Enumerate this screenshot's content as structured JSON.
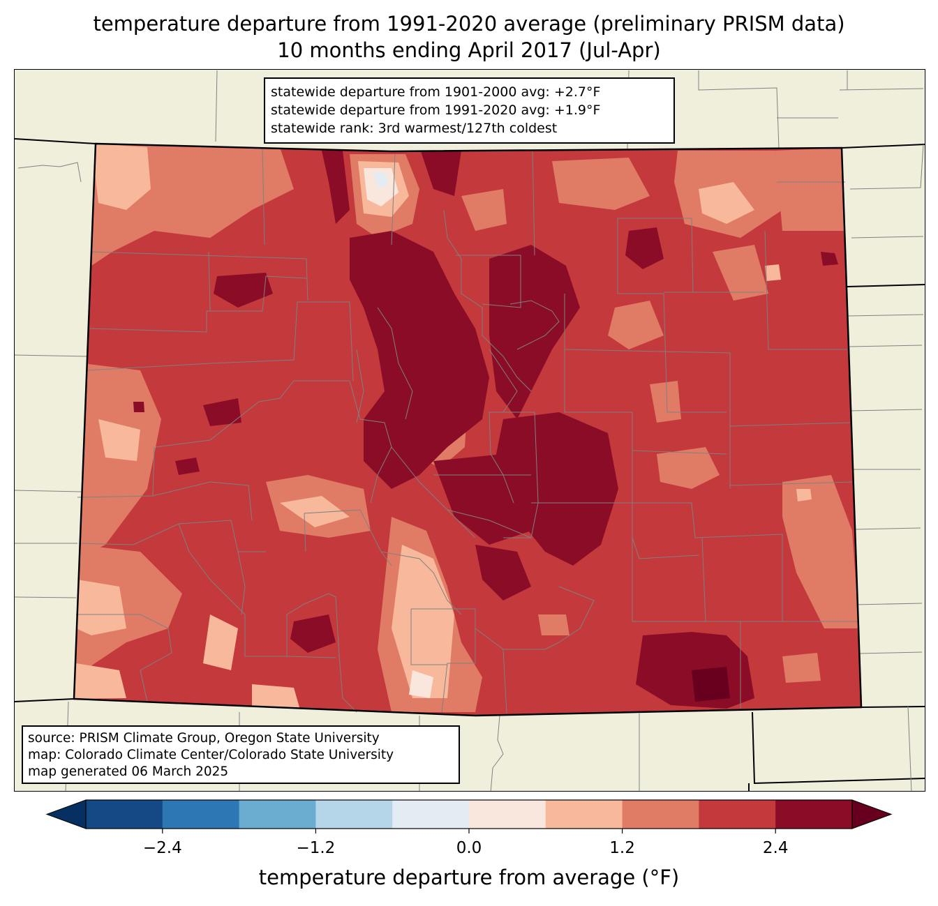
{
  "title": {
    "line1": "temperature departure from 1991-2020 average (preliminary PRISM data)",
    "line2": "10 months ending April 2017 (Jul-Apr)"
  },
  "stats": {
    "lines": [
      "statewide departure from 1901-2000 avg: +2.7°F",
      "statewide departure from 1991-2020 avg: +1.9°F",
      "statewide rank: 3rd warmest/127th coldest"
    ]
  },
  "source": {
    "lines": [
      "source: PRISM Climate Group, Oregon State University",
      "map: Colorado Climate Center/Colorado State University",
      "map generated 06 March 2025"
    ]
  },
  "colorbar": {
    "label": "temperature departure from average (°F)",
    "ticks": [
      {
        "value": -2.4,
        "label": "−2.4"
      },
      {
        "value": -1.2,
        "label": "−1.2"
      },
      {
        "value": 0.0,
        "label": "0.0"
      },
      {
        "value": 1.2,
        "label": "1.2"
      },
      {
        "value": 2.4,
        "label": "2.4"
      }
    ],
    "range": [
      -3.0,
      3.0
    ],
    "bin_width": 0.6,
    "under_color": "#053061",
    "over_color": "#67001f",
    "bins": [
      {
        "from": -3.0,
        "to": -2.4,
        "color": "#134a86"
      },
      {
        "from": -2.4,
        "to": -1.8,
        "color": "#2d78b4"
      },
      {
        "from": -1.8,
        "to": -1.2,
        "color": "#6aadd1"
      },
      {
        "from": -1.2,
        "to": -0.6,
        "color": "#b4d6e8"
      },
      {
        "from": -0.6,
        "to": 0.0,
        "color": "#e3ecf2"
      },
      {
        "from": 0.0,
        "to": 0.6,
        "color": "#f9e6dc"
      },
      {
        "from": 0.6,
        "to": 1.2,
        "color": "#f7b89c"
      },
      {
        "from": 1.2,
        "to": 1.8,
        "color": "#e07c65"
      },
      {
        "from": 1.8,
        "to": 2.4,
        "color": "#c3393c"
      },
      {
        "from": 2.4,
        "to": 3.0,
        "color": "#8b0c26"
      }
    ]
  },
  "map_colors": {
    "background": "#f0efdc",
    "county_lines": "#808080",
    "state_lines": "#000000"
  }
}
